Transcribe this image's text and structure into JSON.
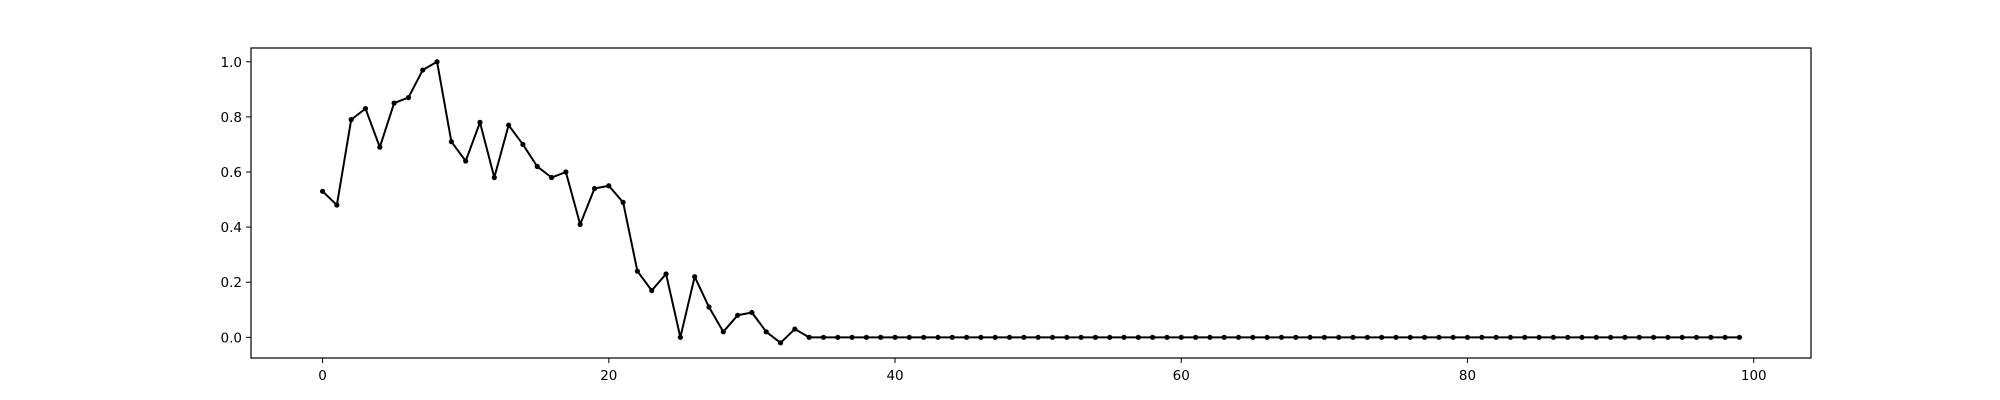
{
  "chart_data": {
    "type": "line",
    "title": "",
    "xlabel": "",
    "ylabel": "",
    "xlim": [
      -5,
      104
    ],
    "ylim": [
      -0.075,
      1.05
    ],
    "x_ticks": [
      0,
      20,
      40,
      60,
      80,
      100
    ],
    "y_ticks": [
      0.0,
      0.2,
      0.4,
      0.6,
      0.8,
      1.0
    ],
    "x_tick_labels": [
      "0",
      "20",
      "40",
      "60",
      "80",
      "100"
    ],
    "y_tick_labels": [
      "0.0",
      "0.2",
      "0.4",
      "0.6",
      "0.8",
      "1.0"
    ],
    "grid": false,
    "legend": "none",
    "series": [
      {
        "color": "#000000",
        "marker": "circle",
        "x": [
          0,
          1,
          2,
          3,
          4,
          5,
          6,
          7,
          8,
          9,
          10,
          11,
          12,
          13,
          14,
          15,
          16,
          17,
          18,
          19,
          20,
          21,
          22,
          23,
          24,
          25,
          26,
          27,
          28,
          29,
          30,
          31,
          32,
          33,
          34,
          35,
          36,
          37,
          38,
          39,
          40,
          41,
          42,
          43,
          44,
          45,
          46,
          47,
          48,
          49,
          50,
          51,
          52,
          53,
          54,
          55,
          56,
          57,
          58,
          59,
          60,
          61,
          62,
          63,
          64,
          65,
          66,
          67,
          68,
          69,
          70,
          71,
          72,
          73,
          74,
          75,
          76,
          77,
          78,
          79,
          80,
          81,
          82,
          83,
          84,
          85,
          86,
          87,
          88,
          89,
          90,
          91,
          92,
          93,
          94,
          95,
          96,
          97,
          98,
          99
        ],
        "y": [
          0.53,
          0.48,
          0.79,
          0.83,
          0.69,
          0.85,
          0.87,
          0.97,
          1.0,
          0.71,
          0.64,
          0.78,
          0.58,
          0.77,
          0.7,
          0.62,
          0.58,
          0.6,
          0.41,
          0.54,
          0.55,
          0.49,
          0.24,
          0.17,
          0.23,
          0.0,
          0.22,
          0.11,
          0.02,
          0.08,
          0.09,
          0.02,
          -0.02,
          0.03,
          0,
          0,
          0,
          0,
          0,
          0,
          0,
          0,
          0,
          0,
          0,
          0,
          0,
          0,
          0,
          0,
          0,
          0,
          0,
          0,
          0,
          0,
          0,
          0,
          0,
          0,
          0,
          0,
          0,
          0,
          0,
          0,
          0,
          0,
          0,
          0,
          0,
          0,
          0,
          0,
          0,
          0,
          0,
          0,
          0,
          0,
          0,
          0,
          0,
          0,
          0,
          0,
          0,
          0,
          0,
          0,
          0,
          0,
          0,
          0,
          0,
          0,
          0,
          0,
          0,
          0
        ]
      }
    ]
  }
}
